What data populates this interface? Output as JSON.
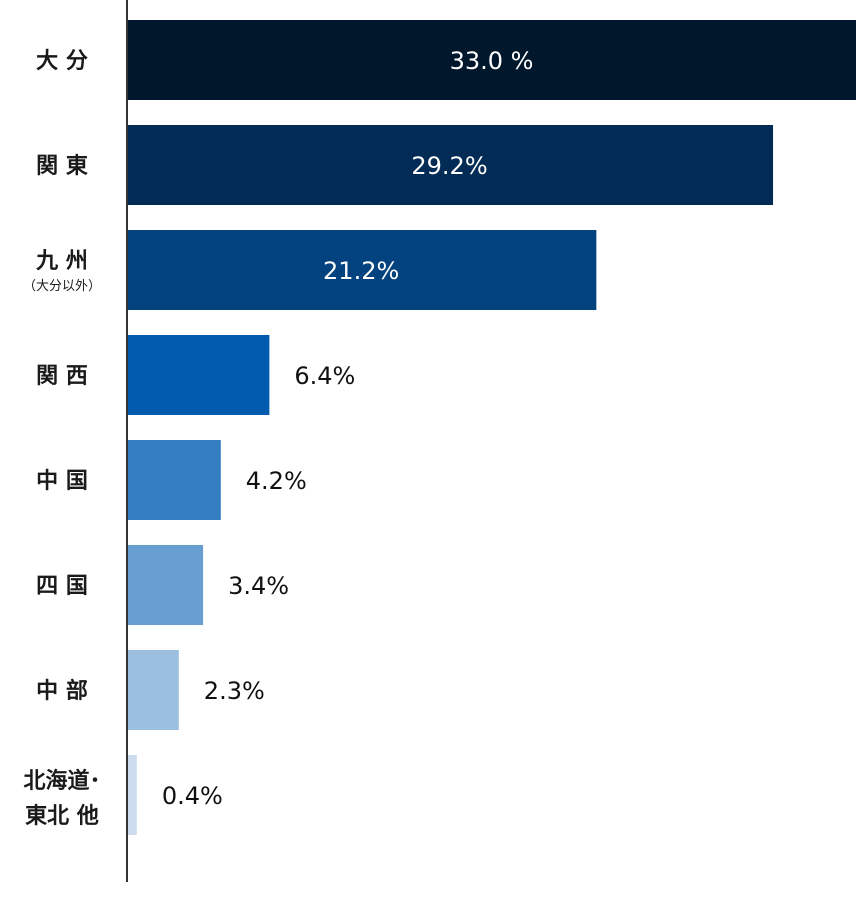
{
  "chart_data": {
    "type": "bar",
    "orientation": "horizontal",
    "title": "",
    "xlabel": "",
    "ylabel": "",
    "xlim": [
      0,
      33.0
    ],
    "grid": false,
    "legend": "none",
    "categories": [
      {
        "lines": [
          "大 分"
        ],
        "sub": ""
      },
      {
        "lines": [
          "関 東"
        ],
        "sub": ""
      },
      {
        "lines": [
          "九 州"
        ],
        "sub": "（大分以外）"
      },
      {
        "lines": [
          "関 西"
        ],
        "sub": ""
      },
      {
        "lines": [
          "中 国"
        ],
        "sub": ""
      },
      {
        "lines": [
          "四 国"
        ],
        "sub": ""
      },
      {
        "lines": [
          "中 部"
        ],
        "sub": ""
      },
      {
        "lines": [
          "北海道･",
          "東北 他"
        ],
        "sub": ""
      }
    ],
    "values": [
      33.0,
      29.2,
      21.2,
      6.4,
      4.2,
      3.4,
      2.3,
      0.4
    ],
    "value_labels": [
      "33.0 %",
      "29.2%",
      "21.2%",
      "6.4%",
      "4.2%",
      "3.4%",
      "2.3%",
      "0.4%"
    ],
    "colors": [
      "#01182c",
      "#022c55",
      "#01427f",
      "#035bb0",
      "#337dc0",
      "#669fd0",
      "#9abfdf",
      "#cddcef"
    ],
    "axis_color": "#333333",
    "label_inside_color": "#ffffff",
    "label_outside_color": "#111111"
  }
}
